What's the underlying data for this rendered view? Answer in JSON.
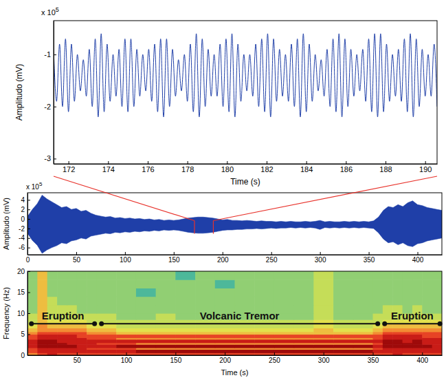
{
  "chart_data": [
    {
      "type": "line",
      "x_label": "Time (s)",
      "y_label": "Amplitudo (mV)",
      "annotations": [
        {
          "text": "x 10",
          "superscript": "5"
        }
      ],
      "xlim": [
        171.25,
        190.6
      ],
      "xticks": [
        172,
        174,
        176,
        178,
        180,
        182,
        184,
        186,
        188,
        190
      ],
      "ylim": [
        -3.1,
        -0.35
      ],
      "yticks": [
        -3,
        -2,
        -1
      ],
      "x": [
        171.25,
        171.4,
        171.55,
        171.7,
        171.85,
        172,
        172.15,
        172.3,
        172.45,
        172.6,
        172.75,
        172.9,
        173.05,
        173.2,
        173.35,
        173.5,
        173.65,
        173.8,
        173.95,
        174.1,
        174.25,
        174.4,
        174.55,
        174.7,
        174.85,
        175,
        175.15,
        175.3,
        175.45,
        175.6,
        175.75,
        175.9,
        176.05,
        176.2,
        176.35,
        176.5,
        176.65,
        176.8,
        176.95,
        177.1,
        177.25,
        177.4,
        177.55,
        177.7,
        177.85,
        178,
        178.15,
        178.3,
        178.45,
        178.6,
        178.75,
        178.9,
        179.05,
        179.2,
        179.35,
        179.5,
        179.65,
        179.8,
        179.95,
        180.1,
        180.25,
        180.4,
        180.55,
        180.7,
        180.85,
        181,
        181.15,
        181.3,
        181.45,
        181.6,
        181.75,
        181.9,
        182.05,
        182.2,
        182.35,
        182.5,
        182.65,
        182.8,
        182.95,
        183.1,
        183.25,
        183.4,
        183.55,
        183.7,
        183.85,
        184,
        184.15,
        184.3,
        184.45,
        184.6,
        184.75,
        184.9,
        185.05,
        185.2,
        185.35,
        185.5,
        185.65,
        185.8,
        185.95,
        186.1,
        186.25,
        186.4,
        186.55,
        186.7,
        186.85,
        187,
        187.15,
        187.3,
        187.45,
        187.6,
        187.75,
        187.9,
        188.05,
        188.2,
        188.35,
        188.5,
        188.65,
        188.8,
        188.95,
        189.1,
        189.25,
        189.4,
        189.55,
        189.7,
        189.85,
        190,
        190.15,
        190.3,
        190.45,
        190.6
      ],
      "series": [
        {
          "color": "#1f3fa8",
          "values": [
            -0.9,
            -1.9,
            -0.8,
            -2.0,
            -0.7,
            -2.1,
            -0.8,
            -1.9,
            -1.0,
            -1.7,
            -1.1,
            -1.8,
            -0.9,
            -2.0,
            -0.7,
            -2.2,
            -0.6,
            -2.1,
            -0.8,
            -1.9,
            -1.0,
            -1.8,
            -0.9,
            -2.0,
            -0.7,
            -2.1,
            -0.7,
            -2.0,
            -0.9,
            -1.8,
            -1.0,
            -1.7,
            -0.9,
            -1.9,
            -0.8,
            -2.1,
            -0.7,
            -2.2,
            -0.7,
            -2.0,
            -0.9,
            -1.8,
            -1.1,
            -1.7,
            -1.0,
            -1.9,
            -0.8,
            -2.1,
            -0.6,
            -2.2,
            -0.7,
            -2.0,
            -0.9,
            -1.8,
            -1.0,
            -1.8,
            -0.8,
            -2.0,
            -0.7,
            -2.1,
            -0.6,
            -2.2,
            -0.8,
            -1.9,
            -1.0,
            -1.7,
            -1.0,
            -1.8,
            -0.8,
            -2.0,
            -0.7,
            -2.1,
            -0.6,
            -2.2,
            -0.7,
            -1.9,
            -0.9,
            -1.8,
            -1.0,
            -1.9,
            -0.8,
            -2.0,
            -0.7,
            -2.2,
            -0.6,
            -2.1,
            -0.8,
            -1.9,
            -1.0,
            -1.7,
            -1.1,
            -1.8,
            -0.9,
            -2.0,
            -0.7,
            -2.1,
            -0.6,
            -2.2,
            -0.7,
            -2.0,
            -0.9,
            -1.8,
            -1.0,
            -1.7,
            -0.9,
            -1.9,
            -0.7,
            -2.1,
            -0.6,
            -2.2,
            -0.6,
            -2.1,
            -0.8,
            -1.9,
            -1.0,
            -1.8,
            -0.9,
            -1.9,
            -0.7,
            -2.1,
            -0.6,
            -2.2,
            -0.7,
            -2.0,
            -0.9,
            -1.8,
            -1.0,
            -1.8,
            -0.8,
            -2.0
          ]
        }
      ]
    },
    {
      "type": "area",
      "y_label": "Amplitudo (mV)",
      "annotations": [
        {
          "text": "x 10",
          "superscript": "5"
        }
      ],
      "xlim": [
        0,
        425
      ],
      "xticks": [
        0,
        50,
        100,
        150,
        200,
        250,
        300,
        350,
        400
      ],
      "ylim": [
        -7.5,
        5.5
      ],
      "yticks": [
        -6,
        -4,
        -2,
        0,
        2,
        4
      ],
      "x": [
        0,
        5,
        10,
        15,
        20,
        25,
        30,
        35,
        40,
        45,
        50,
        55,
        60,
        65,
        70,
        75,
        80,
        85,
        90,
        95,
        100,
        105,
        110,
        115,
        120,
        125,
        130,
        135,
        140,
        145,
        150,
        155,
        160,
        165,
        170,
        175,
        180,
        185,
        190,
        195,
        200,
        205,
        210,
        215,
        220,
        225,
        230,
        235,
        240,
        245,
        250,
        255,
        260,
        265,
        270,
        275,
        280,
        285,
        290,
        295,
        300,
        305,
        310,
        315,
        320,
        325,
        330,
        335,
        340,
        345,
        350,
        355,
        360,
        365,
        370,
        375,
        380,
        385,
        390,
        395,
        400,
        405,
        410,
        415,
        420,
        425
      ],
      "series": [
        {
          "color": "#1f3fa8",
          "upper": [
            0.5,
            2.0,
            3.2,
            5.0,
            4.2,
            3.6,
            3.0,
            2.4,
            2.6,
            2.0,
            2.2,
            1.6,
            1.8,
            1.2,
            0.8,
            0.6,
            0.4,
            0.5,
            0.2,
            0.3,
            0.1,
            0.2,
            0.0,
            0.1,
            -0.1,
            0.0,
            -0.2,
            -0.1,
            -0.3,
            -0.2,
            -0.3,
            -0.2,
            0.0,
            0.2,
            0.3,
            0.4,
            0.4,
            0.3,
            0.2,
            0.0,
            -0.2,
            -0.1,
            -0.3,
            -0.3,
            -0.4,
            -0.3,
            -0.4,
            -0.5,
            -0.4,
            -0.5,
            -0.5,
            -0.6,
            -0.5,
            -0.6,
            -0.5,
            -0.6,
            -0.6,
            -0.5,
            -0.6,
            -0.5,
            -0.3,
            -0.6,
            -0.5,
            -0.6,
            -0.6,
            -0.5,
            -0.6,
            -0.5,
            -0.6,
            -0.5,
            -0.6,
            -0.4,
            0.4,
            1.8,
            2.6,
            2.4,
            3.0,
            2.6,
            3.4,
            3.8,
            3.0,
            2.8,
            2.4,
            2.2,
            2.0,
            1.8
          ],
          "lower": [
            -3.0,
            -4.5,
            -5.5,
            -7.2,
            -6.5,
            -6.0,
            -5.6,
            -5.0,
            -5.2,
            -4.6,
            -4.4,
            -4.0,
            -4.2,
            -3.6,
            -3.4,
            -3.2,
            -3.0,
            -3.1,
            -2.8,
            -2.9,
            -2.7,
            -2.8,
            -2.6,
            -2.7,
            -2.5,
            -2.6,
            -2.4,
            -2.5,
            -2.3,
            -2.4,
            -2.3,
            -2.4,
            -2.6,
            -2.8,
            -2.9,
            -3.0,
            -3.0,
            -2.9,
            -2.8,
            -2.6,
            -2.4,
            -2.3,
            -2.3,
            -2.2,
            -2.2,
            -2.1,
            -2.1,
            -2.0,
            -2.1,
            -2.0,
            -1.9,
            -2.0,
            -1.9,
            -1.9,
            -1.8,
            -1.9,
            -1.8,
            -1.9,
            -1.8,
            -1.9,
            -2.2,
            -1.8,
            -1.9,
            -1.8,
            -1.9,
            -1.8,
            -1.9,
            -1.8,
            -1.9,
            -1.8,
            -1.9,
            -2.0,
            -2.9,
            -4.2,
            -5.0,
            -4.8,
            -5.4,
            -5.0,
            -5.6,
            -5.8,
            -5.2,
            -5.0,
            -4.6,
            -4.4,
            -4.2,
            -4.0
          ]
        }
      ]
    },
    {
      "type": "heatmap",
      "x_label": "Time (s)",
      "y_label": "Frequency (Hz)",
      "xlim": [
        0,
        420
      ],
      "xticks": [
        50,
        100,
        150,
        200,
        250,
        300,
        350,
        400
      ],
      "ylim": [
        0,
        20
      ],
      "yticks": [
        0,
        5,
        10,
        15,
        20
      ],
      "x_bins": [
        0,
        10,
        20,
        30,
        40,
        50,
        60,
        70,
        90,
        110,
        130,
        150,
        170,
        190,
        210,
        230,
        250,
        270,
        290,
        310,
        330,
        350,
        360,
        370,
        380,
        390,
        400,
        410,
        420
      ],
      "y_bins": [
        0,
        0.6,
        1.4,
        1.8,
        2.6,
        3.0,
        3.8,
        4.2,
        5.0,
        5.6,
        6.5,
        7.5,
        8.5,
        10,
        12,
        14,
        16,
        18,
        20
      ],
      "cells": [
        [
          7,
          8,
          9,
          8,
          8,
          8,
          8,
          8,
          8,
          8,
          8,
          8,
          8,
          8,
          8,
          8,
          8,
          8,
          8,
          8,
          8,
          8,
          8,
          9,
          8,
          8,
          8,
          8
        ],
        [
          8,
          9,
          9,
          9,
          9,
          9,
          9,
          9,
          9,
          10,
          10,
          10,
          10,
          10,
          10,
          10,
          10,
          10,
          10,
          10,
          10,
          9,
          9,
          9,
          9,
          9,
          9,
          9
        ],
        [
          8,
          9,
          9,
          9,
          9,
          9,
          8,
          8,
          8,
          7,
          7,
          7,
          7,
          7,
          7,
          7,
          7,
          7,
          7,
          7,
          7,
          8,
          9,
          9,
          9,
          9,
          9,
          9
        ],
        [
          9,
          10,
          10,
          10,
          10,
          9,
          9,
          9,
          10,
          10,
          10,
          10,
          10,
          10,
          10,
          10,
          10,
          10,
          10,
          10,
          10,
          9,
          10,
          10,
          10,
          10,
          10,
          9
        ],
        [
          9,
          10,
          10,
          10,
          9,
          9,
          9,
          8,
          8,
          7,
          7,
          7,
          7,
          7,
          7,
          7,
          7,
          7,
          7,
          7,
          7,
          8,
          10,
          10,
          10,
          10,
          9,
          9
        ],
        [
          9,
          10,
          10,
          9,
          9,
          9,
          9,
          9,
          9,
          9,
          9,
          9,
          9,
          9,
          9,
          9,
          9,
          9,
          9,
          9,
          9,
          9,
          10,
          10,
          9,
          10,
          9,
          9
        ],
        [
          8,
          9,
          9,
          9,
          9,
          9,
          8,
          8,
          7,
          7,
          7,
          7,
          7,
          7,
          7,
          7,
          7,
          7,
          7,
          7,
          7,
          8,
          9,
          9,
          9,
          9,
          9,
          9
        ],
        [
          8,
          9,
          9,
          9,
          9,
          8,
          8,
          8,
          8,
          8,
          8,
          8,
          8,
          8,
          8,
          8,
          8,
          8,
          8,
          8,
          8,
          8,
          9,
          9,
          9,
          9,
          8,
          8
        ],
        [
          7,
          8,
          8,
          8,
          8,
          8,
          7,
          7,
          6,
          6,
          6,
          6,
          6,
          6,
          6,
          6,
          6,
          6,
          6,
          6,
          6,
          7,
          8,
          8,
          8,
          8,
          8,
          8
        ],
        [
          6,
          7,
          7,
          7,
          7,
          7,
          6,
          6,
          5,
          5,
          5,
          5,
          5,
          5,
          5,
          5,
          5,
          5,
          6,
          5,
          5,
          6,
          7,
          7,
          7,
          7,
          7,
          7
        ],
        [
          5,
          7,
          6,
          6,
          6,
          6,
          5,
          5,
          4,
          4,
          4,
          4,
          4,
          4,
          4,
          4,
          4,
          4,
          5,
          4,
          4,
          5,
          6,
          6,
          6,
          6,
          6,
          6
        ],
        [
          4,
          6,
          5,
          5,
          5,
          5,
          4,
          4,
          4,
          4,
          4,
          4,
          4,
          4,
          4,
          4,
          4,
          4,
          5,
          4,
          4,
          4,
          5,
          5,
          5,
          5,
          5,
          5
        ],
        [
          4,
          6,
          4,
          4,
          4,
          4,
          4,
          4,
          3,
          3,
          4,
          3,
          3,
          3,
          3,
          3,
          3,
          3,
          4,
          3,
          3,
          4,
          4,
          4,
          4,
          4,
          4,
          4
        ],
        [
          3,
          6,
          4,
          4,
          4,
          3,
          3,
          3,
          3,
          3,
          3,
          3,
          3,
          3,
          3,
          3,
          3,
          3,
          4,
          3,
          3,
          3,
          4,
          4,
          3,
          4,
          3,
          3
        ],
        [
          3,
          6,
          4,
          3,
          3,
          3,
          3,
          3,
          3,
          3,
          3,
          3,
          3,
          3,
          3,
          3,
          3,
          3,
          4,
          3,
          3,
          3,
          3,
          3,
          3,
          3,
          3,
          3
        ],
        [
          3,
          6,
          3,
          3,
          3,
          3,
          3,
          3,
          3,
          2,
          3,
          3,
          3,
          3,
          3,
          3,
          3,
          3,
          4,
          3,
          3,
          3,
          3,
          3,
          3,
          3,
          3,
          3
        ],
        [
          3,
          6,
          3,
          3,
          3,
          3,
          3,
          3,
          3,
          3,
          3,
          3,
          3,
          2,
          3,
          3,
          3,
          3,
          4,
          3,
          3,
          3,
          3,
          3,
          3,
          3,
          3,
          3
        ],
        [
          3,
          6,
          3,
          3,
          3,
          3,
          3,
          3,
          3,
          3,
          3,
          2,
          3,
          3,
          3,
          3,
          3,
          3,
          4,
          3,
          3,
          3,
          3,
          3,
          3,
          3,
          3,
          3
        ]
      ],
      "annotations": [
        {
          "text": "Eruption",
          "x": [
            4,
            68
          ],
          "y": 7.5
        },
        {
          "text": "Volcanic Tremor",
          "x": [
            75,
            355
          ],
          "y": 7.5
        },
        {
          "text": "Eruption",
          "x": [
            362,
            418
          ],
          "y": 7.5
        }
      ]
    }
  ]
}
